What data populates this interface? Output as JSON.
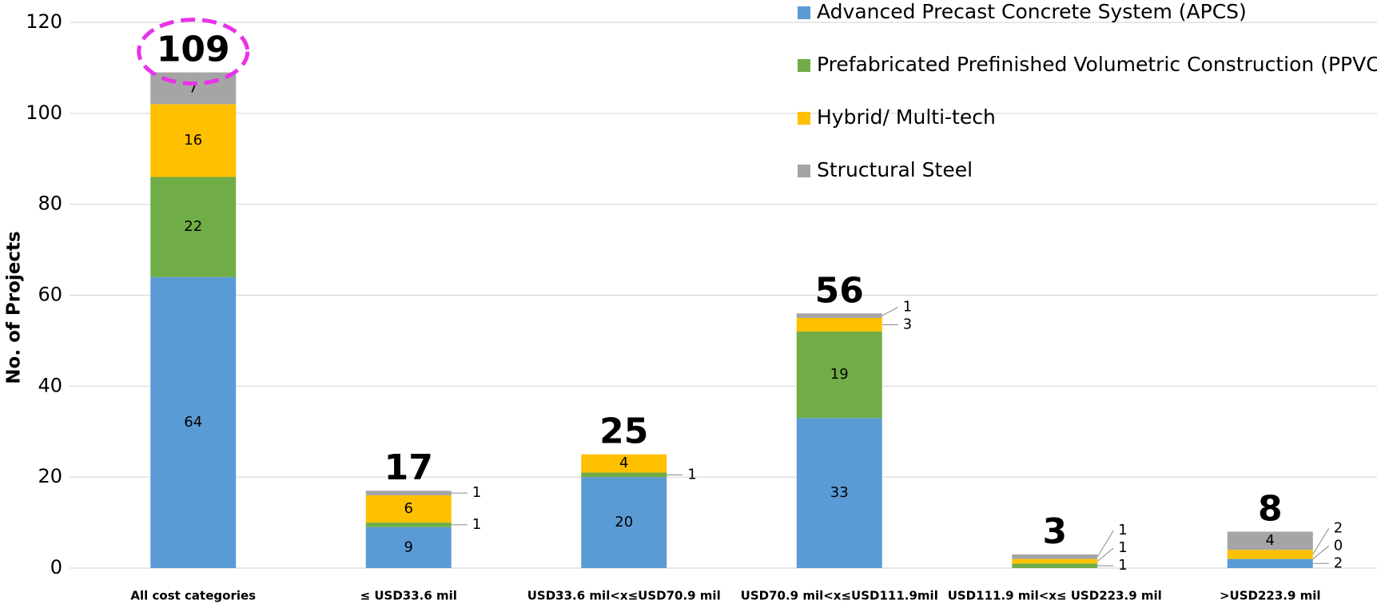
{
  "chart_data": {
    "type": "stacked_bar",
    "y_label": "No. of Projects",
    "categories": [
      "All cost categories",
      "≤ USD33.6 mil",
      "USD33.6 mil<x≤USD70.9 mil",
      "USD70.9 mil<x≤USD111.9mil",
      "USD111.9 mil<x≤ USD223.9 mil",
      ">USD223.9 mil"
    ],
    "series": [
      {
        "name": "Advanced Precast Concrete System (APCS)",
        "color": "#5b9bd5",
        "values": [
          64,
          9,
          20,
          33,
          0,
          2
        ],
        "value_labels": [
          "64",
          "9",
          "20",
          "33",
          null,
          "2"
        ]
      },
      {
        "name": "Prefabricated Prefinished Volumetric Construction (PPVC)",
        "color": "#70ad47",
        "values": [
          22,
          1,
          1,
          19,
          1,
          0
        ],
        "value_labels": [
          "22",
          "1",
          "1",
          "19",
          "1",
          "0"
        ]
      },
      {
        "name": "Hybrid/ Multi-tech",
        "color": "#ffc000",
        "values": [
          16,
          6,
          4,
          3,
          1,
          2
        ],
        "value_labels": [
          "16",
          "6",
          "4",
          "3",
          "1",
          "2"
        ]
      },
      {
        "name": "Structural Steel",
        "color": "#a5a5a5",
        "values": [
          7,
          1,
          0,
          1,
          1,
          4
        ],
        "value_labels": [
          "7",
          "1",
          null,
          "1",
          "1",
          "4"
        ]
      }
    ],
    "totals": [
      109,
      17,
      25,
      56,
      3,
      8
    ],
    "ylim": [
      0,
      120
    ],
    "yticks": [
      0,
      20,
      40,
      60,
      80,
      100,
      120
    ],
    "grid": true,
    "legend": "top-right"
  }
}
